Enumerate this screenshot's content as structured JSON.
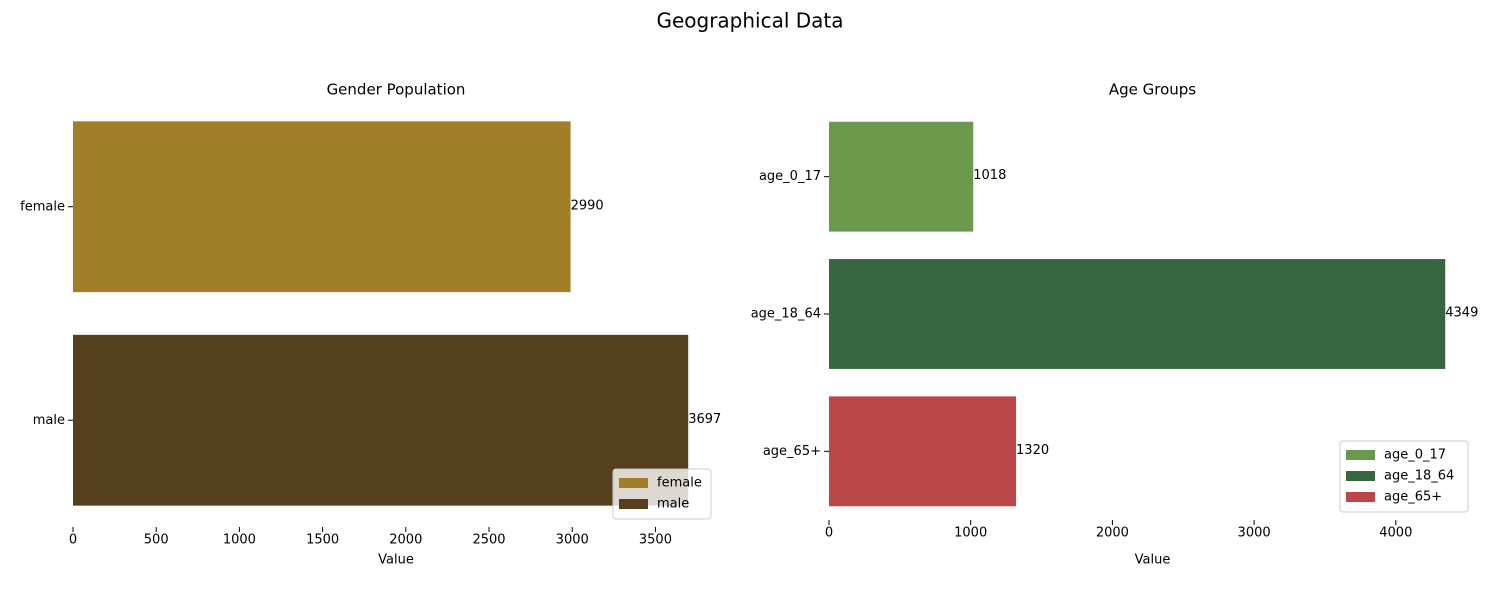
{
  "title": "Geographical Data",
  "chart_data": [
    {
      "type": "barh",
      "title": "Gender Population",
      "xlabel": "Value",
      "categories": [
        "female",
        "male"
      ],
      "values": [
        2990,
        3697
      ],
      "colors": [
        "#a27e28",
        "#553f1c"
      ],
      "xlim": [
        0,
        3882
      ],
      "xticks": [
        0,
        500,
        1000,
        1500,
        2000,
        2500,
        3000,
        3500
      ],
      "legend": "lower right"
    },
    {
      "type": "barh",
      "title": "Age Groups",
      "xlabel": "Value",
      "categories": [
        "age_0_17",
        "age_18_64",
        "age_65+"
      ],
      "values": [
        1018,
        4349,
        1320
      ],
      "colors": [
        "#6a994b",
        "#386641",
        "#bc4749"
      ],
      "xlim": [
        0,
        4566
      ],
      "xticks": [
        0,
        1000,
        2000,
        3000,
        4000
      ],
      "legend": "lower right"
    }
  ]
}
